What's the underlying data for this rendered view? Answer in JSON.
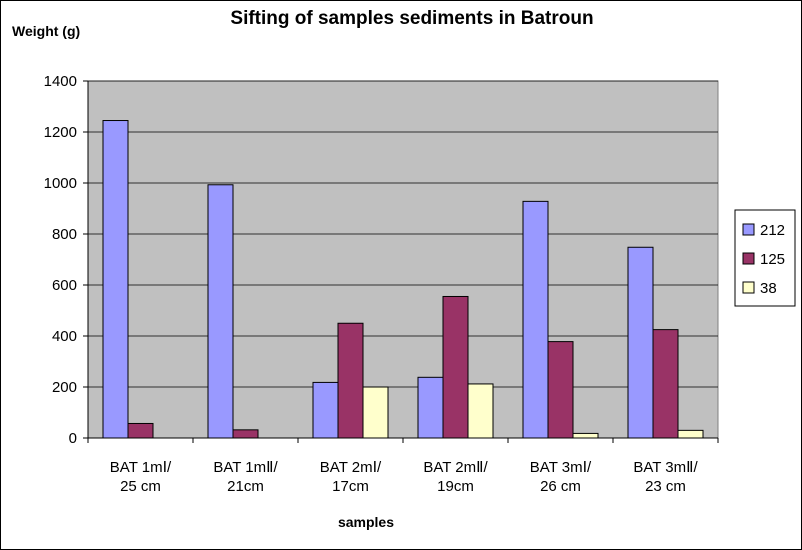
{
  "chart_data": {
    "type": "bar",
    "title": "Sifting of samples sediments in Batroun",
    "ylabel": "Weight (g)",
    "xlabel": "samples",
    "ylim": [
      0,
      1400
    ],
    "yticks": [
      0,
      200,
      400,
      600,
      800,
      1000,
      1200,
      1400
    ],
    "grid": true,
    "legend_position": "right",
    "categories": [
      [
        "BAT 1mⅠ/",
        "25 cm"
      ],
      [
        "BAT 1mⅡ/",
        "21cm"
      ],
      [
        "BAT 2mⅠ/",
        "17cm"
      ],
      [
        "BAT 2mⅡ/",
        "19cm"
      ],
      [
        "BAT 3mⅠ/",
        "26 cm"
      ],
      [
        "BAT 3mⅡ/",
        "23 cm"
      ]
    ],
    "series": [
      {
        "name": "212",
        "color": "#9999ff",
        "values": [
          1245,
          993,
          218,
          238,
          928,
          748
        ]
      },
      {
        "name": "125",
        "color": "#993366",
        "values": [
          57,
          32,
          450,
          555,
          378,
          425
        ]
      },
      {
        "name": "38",
        "color": "#ffffcc",
        "values": [
          0,
          0,
          200,
          212,
          18,
          30
        ]
      }
    ],
    "plot_background": "#c0c0c0"
  }
}
